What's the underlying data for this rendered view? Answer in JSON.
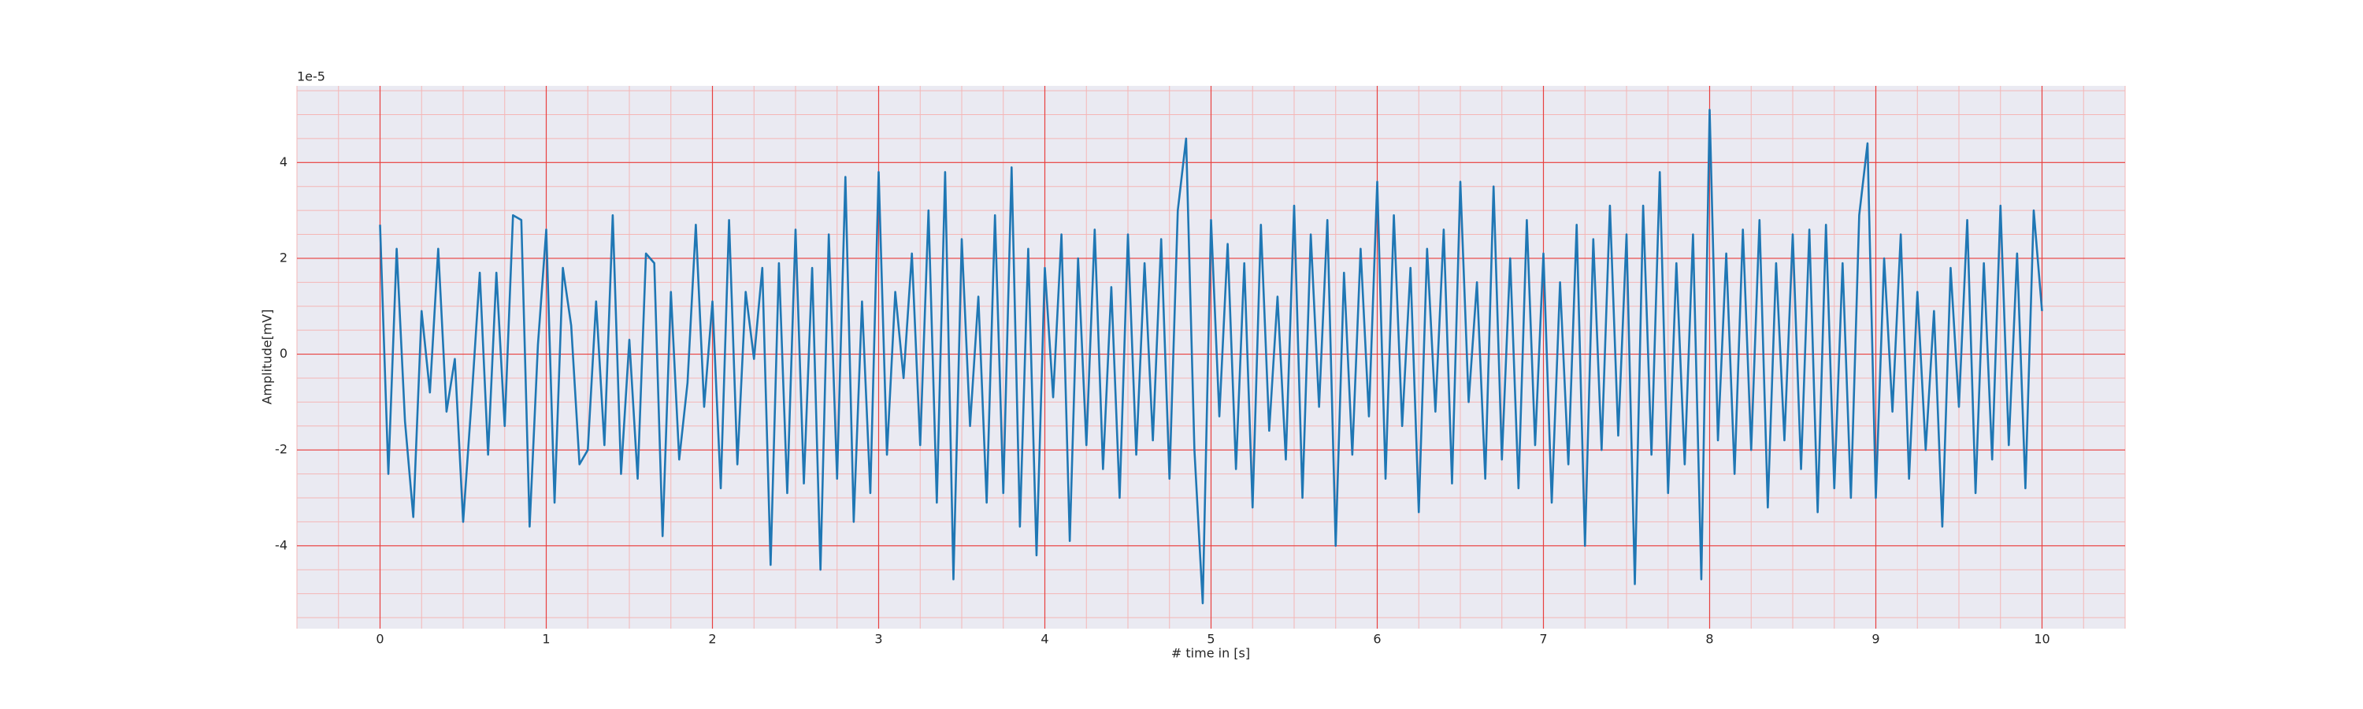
{
  "chart_data": {
    "type": "line",
    "xlabel": "# time in [s]",
    "ylabel": "Amplitude[mV]",
    "offset_text": "1e-5",
    "color": "#1f77b4",
    "grid": true,
    "minor_grid": true,
    "xlim": [
      -0.5,
      10.5
    ],
    "ylim": [
      -5.73,
      5.6
    ],
    "xticks": [
      0,
      1,
      2,
      3,
      4,
      5,
      6,
      7,
      8,
      9,
      10
    ],
    "yticks": [
      -4,
      -2,
      0,
      2,
      4
    ],
    "x": [
      0,
      0.05,
      0.1,
      0.15,
      0.2,
      0.25,
      0.3,
      0.35,
      0.4,
      0.45,
      0.5,
      0.55,
      0.6,
      0.65,
      0.7,
      0.75,
      0.8,
      0.85,
      0.9,
      0.95,
      1,
      1.05,
      1.1,
      1.15,
      1.2,
      1.25,
      1.3,
      1.35,
      1.4,
      1.45,
      1.5,
      1.55,
      1.6,
      1.65,
      1.7,
      1.75,
      1.8,
      1.85,
      1.9,
      1.95,
      2,
      2.05,
      2.1,
      2.15,
      2.2,
      2.25,
      2.3,
      2.35,
      2.4,
      2.45,
      2.5,
      2.55,
      2.6,
      2.65,
      2.7,
      2.75,
      2.8,
      2.85,
      2.9,
      2.95,
      3,
      3.05,
      3.1,
      3.15,
      3.2,
      3.25,
      3.3,
      3.35,
      3.4,
      3.45,
      3.5,
      3.55,
      3.6,
      3.65,
      3.7,
      3.75,
      3.8,
      3.85,
      3.9,
      3.95,
      4,
      4.05,
      4.1,
      4.15,
      4.2,
      4.25,
      4.3,
      4.35,
      4.4,
      4.45,
      4.5,
      4.55,
      4.6,
      4.65,
      4.7,
      4.75,
      4.8,
      4.85,
      4.9,
      4.95,
      5,
      5.05,
      5.1,
      5.15,
      5.2,
      5.25,
      5.3,
      5.35,
      5.4,
      5.45,
      5.5,
      5.55,
      5.6,
      5.65,
      5.7,
      5.75,
      5.8,
      5.85,
      5.9,
      5.95,
      6,
      6.05,
      6.1,
      6.15,
      6.2,
      6.25,
      6.3,
      6.35,
      6.4,
      6.45,
      6.5,
      6.55,
      6.6,
      6.65,
      6.7,
      6.75,
      6.8,
      6.85,
      6.9,
      6.95,
      7,
      7.05,
      7.1,
      7.15,
      7.2,
      7.25,
      7.3,
      7.35,
      7.4,
      7.45,
      7.5,
      7.55,
      7.6,
      7.65,
      7.7,
      7.75,
      7.8,
      7.85,
      7.9,
      7.95,
      8,
      8.05,
      8.1,
      8.15,
      8.2,
      8.25,
      8.3,
      8.35,
      8.4,
      8.45,
      8.5,
      8.55,
      8.6,
      8.65,
      8.7,
      8.75,
      8.8,
      8.85,
      8.9,
      8.95,
      9,
      9.05,
      9.1,
      9.15,
      9.2,
      9.25,
      9.3,
      9.35,
      9.4,
      9.45,
      9.5,
      9.55,
      9.6,
      9.65,
      9.7,
      9.75,
      9.8,
      9.85,
      9.9,
      9.95,
      10
    ],
    "values": [
      2.7,
      -2.5,
      2.2,
      -1.4,
      -3.4,
      0.9,
      -0.8,
      2.2,
      -1.2,
      -0.1,
      -3.5,
      -1.0,
      1.7,
      -2.1,
      1.7,
      -1.5,
      2.9,
      2.8,
      -3.6,
      0.2,
      2.6,
      -3.1,
      1.8,
      0.6,
      -2.3,
      -2.0,
      1.1,
      -1.9,
      2.9,
      -2.5,
      0.3,
      -2.6,
      2.1,
      1.9,
      -3.8,
      1.3,
      -2.2,
      -0.6,
      2.7,
      -1.1,
      1.1,
      -2.8,
      2.8,
      -2.3,
      1.3,
      -0.1,
      1.8,
      -4.4,
      1.9,
      -2.9,
      2.6,
      -2.7,
      1.8,
      -4.5,
      2.5,
      -2.6,
      3.7,
      -3.5,
      1.1,
      -2.9,
      3.8,
      -2.1,
      1.3,
      -0.5,
      2.1,
      -1.9,
      3.0,
      -3.1,
      3.8,
      -4.7,
      2.4,
      -1.5,
      1.2,
      -3.1,
      2.9,
      -2.9,
      3.9,
      -3.6,
      2.2,
      -4.2,
      1.8,
      -0.9,
      2.5,
      -3.9,
      2.0,
      -1.9,
      2.6,
      -2.4,
      1.4,
      -3.0,
      2.5,
      -2.1,
      1.9,
      -1.8,
      2.4,
      -2.6,
      3.0,
      4.5,
      -2.0,
      -5.2,
      2.8,
      -1.3,
      2.3,
      -2.4,
      1.9,
      -3.2,
      2.7,
      -1.6,
      1.2,
      -2.2,
      3.1,
      -3.0,
      2.5,
      -1.1,
      2.8,
      -4.0,
      1.7,
      -2.1,
      2.2,
      -1.3,
      3.6,
      -2.6,
      2.9,
      -1.5,
      1.8,
      -3.3,
      2.2,
      -1.2,
      2.6,
      -2.7,
      3.6,
      -1.0,
      1.5,
      -2.6,
      3.5,
      -2.2,
      2.0,
      -2.8,
      2.8,
      -1.9,
      2.1,
      -3.1,
      1.5,
      -2.3,
      2.7,
      -4.0,
      2.4,
      -2.0,
      3.1,
      -1.7,
      2.5,
      -4.8,
      3.1,
      -2.1,
      3.8,
      -2.9,
      1.9,
      -2.3,
      2.5,
      -4.7,
      5.1,
      -1.8,
      2.1,
      -2.5,
      2.6,
      -2.0,
      2.8,
      -3.2,
      1.9,
      -1.8,
      2.5,
      -2.4,
      2.6,
      -3.3,
      2.7,
      -2.8,
      1.9,
      -3.0,
      2.9,
      4.4,
      -3.0,
      2.0,
      -1.2,
      2.5,
      -2.6,
      1.3,
      -2.0,
      0.9,
      -3.6,
      1.8,
      -1.1,
      2.8,
      -2.9,
      1.9,
      -2.2,
      3.1,
      -1.9,
      2.1,
      -2.8,
      3.0,
      0.9
    ]
  }
}
